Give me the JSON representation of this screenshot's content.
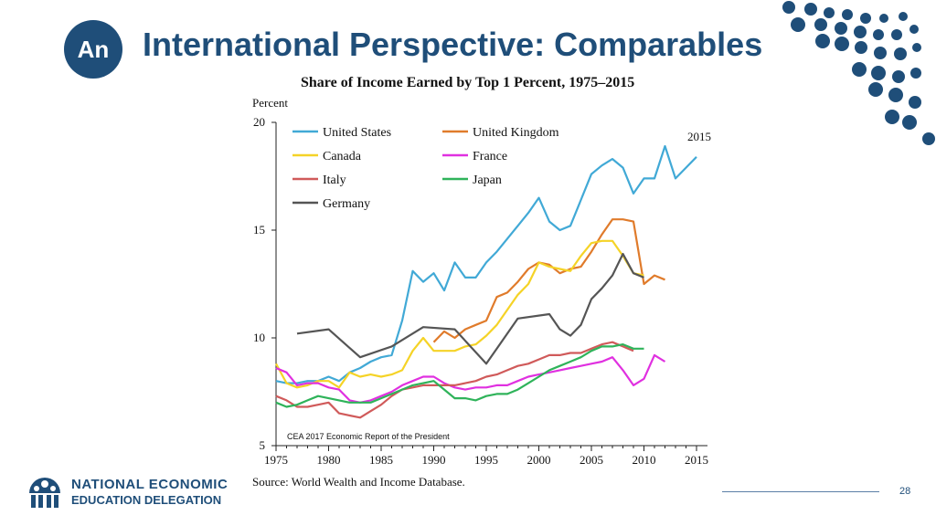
{
  "slide": {
    "badge_text": "An",
    "title": "International Perspective: Comparables",
    "page_number": "28"
  },
  "logo": {
    "line1": "NATIONAL ECONOMIC",
    "line2": "EDUCATION DELEGATION",
    "icon": "people-building-icon"
  },
  "colors": {
    "brand": "#1f4e79",
    "dots": "#1f4e79"
  },
  "chart_data": {
    "type": "line",
    "title": "Share of Income Earned by Top 1 Percent, 1975–2015",
    "ylabel": "Percent",
    "xlabel": "",
    "ylim": [
      5,
      20
    ],
    "xlim": [
      1975,
      2015
    ],
    "yticks": [
      5,
      10,
      15,
      20
    ],
    "xticks": [
      1975,
      1980,
      1985,
      1990,
      1995,
      2000,
      2005,
      2010,
      2015
    ],
    "grid": false,
    "legend_position": "top-left",
    "annotations": {
      "year_label": "2015",
      "credit": "CEA 2017 Economic Report of the President",
      "source": "Source: World Wealth and Income Database."
    },
    "series": [
      {
        "name": "United States",
        "color": "#41a9d6",
        "x": [
          1975,
          1976,
          1977,
          1978,
          1979,
          1980,
          1981,
          1982,
          1983,
          1984,
          1985,
          1986,
          1987,
          1988,
          1989,
          1990,
          1991,
          1992,
          1993,
          1994,
          1995,
          1996,
          1997,
          1998,
          1999,
          2000,
          2001,
          2002,
          2003,
          2004,
          2005,
          2006,
          2007,
          2008,
          2009,
          2010,
          2011,
          2012,
          2013,
          2014,
          2015
        ],
        "y": [
          8.0,
          7.9,
          7.9,
          8.0,
          8.0,
          8.2,
          8.0,
          8.4,
          8.6,
          8.9,
          9.1,
          9.2,
          10.8,
          13.1,
          12.6,
          13.0,
          12.2,
          13.5,
          12.8,
          12.8,
          13.5,
          14.0,
          14.6,
          15.2,
          15.8,
          16.5,
          15.4,
          15.0,
          15.2,
          16.4,
          17.6,
          18.0,
          18.3,
          17.9,
          16.7,
          17.4,
          17.4,
          18.9,
          17.4,
          17.9,
          18.4
        ]
      },
      {
        "name": "United Kingdom",
        "color": "#e07b2b",
        "x": [
          1990,
          1991,
          1992,
          1993,
          1994,
          1995,
          1996,
          1997,
          1998,
          1999,
          2000,
          2001,
          2002,
          2003,
          2004,
          2005,
          2006,
          2007,
          2008,
          2009,
          2010,
          2011,
          2012
        ],
        "y": [
          9.8,
          10.3,
          10.0,
          10.4,
          10.6,
          10.8,
          11.9,
          12.1,
          12.6,
          13.2,
          13.5,
          13.4,
          13.0,
          13.2,
          13.3,
          14.0,
          14.8,
          15.5,
          15.5,
          15.4,
          12.5,
          12.9,
          12.7
        ]
      },
      {
        "name": "Canada",
        "color": "#f5d327",
        "x": [
          1975,
          1976,
          1977,
          1978,
          1979,
          1980,
          1981,
          1982,
          1983,
          1984,
          1985,
          1986,
          1987,
          1988,
          1989,
          1990,
          1991,
          1992,
          1993,
          1994,
          1995,
          1996,
          1997,
          1998,
          1999,
          2000,
          2001,
          2002,
          2003,
          2004,
          2005,
          2006,
          2007,
          2008,
          2009,
          2010
        ],
        "y": [
          8.8,
          7.9,
          7.7,
          7.8,
          8.0,
          8.0,
          7.7,
          8.4,
          8.2,
          8.3,
          8.2,
          8.3,
          8.5,
          9.4,
          10.0,
          9.4,
          9.4,
          9.4,
          9.6,
          9.7,
          10.1,
          10.6,
          11.3,
          12.0,
          12.5,
          13.5,
          13.3,
          13.2,
          13.1,
          13.8,
          14.4,
          14.5,
          14.5,
          13.8,
          13.0,
          12.9
        ]
      },
      {
        "name": "France",
        "color": "#e030e0",
        "x": [
          1975,
          1976,
          1977,
          1978,
          1979,
          1980,
          1981,
          1982,
          1983,
          1984,
          1985,
          1986,
          1987,
          1988,
          1989,
          1990,
          1991,
          1992,
          1993,
          1994,
          1995,
          1996,
          1997,
          1998,
          1999,
          2000,
          2001,
          2002,
          2003,
          2004,
          2005,
          2006,
          2007,
          2008,
          2009,
          2010,
          2011,
          2012
        ],
        "y": [
          8.6,
          8.4,
          7.8,
          7.9,
          7.9,
          7.7,
          7.6,
          7.1,
          7.0,
          7.1,
          7.3,
          7.5,
          7.8,
          8.0,
          8.2,
          8.2,
          7.9,
          7.7,
          7.6,
          7.7,
          7.7,
          7.8,
          7.8,
          8.0,
          8.2,
          8.3,
          8.4,
          8.5,
          8.6,
          8.7,
          8.8,
          8.9,
          9.1,
          8.5,
          7.8,
          8.1,
          9.2,
          8.9
        ]
      },
      {
        "name": "Italy",
        "color": "#d05a5a",
        "x": [
          1975,
          1976,
          1977,
          1978,
          1979,
          1980,
          1981,
          1982,
          1983,
          1984,
          1985,
          1986,
          1987,
          1988,
          1989,
          1990,
          1991,
          1992,
          1993,
          1994,
          1995,
          1996,
          1997,
          1998,
          1999,
          2000,
          2001,
          2002,
          2003,
          2004,
          2005,
          2006,
          2007,
          2008,
          2009
        ],
        "y": [
          7.3,
          7.1,
          6.8,
          6.8,
          6.9,
          7.0,
          6.5,
          6.4,
          6.3,
          6.6,
          6.9,
          7.3,
          7.6,
          7.7,
          7.8,
          7.8,
          7.8,
          7.8,
          7.9,
          8.0,
          8.2,
          8.3,
          8.5,
          8.7,
          8.8,
          9.0,
          9.2,
          9.2,
          9.3,
          9.3,
          9.5,
          9.7,
          9.8,
          9.6,
          9.4
        ]
      },
      {
        "name": "Japan",
        "color": "#2fb35a",
        "x": [
          1975,
          1976,
          1977,
          1978,
          1979,
          1980,
          1981,
          1982,
          1983,
          1984,
          1985,
          1986,
          1987,
          1988,
          1989,
          1990,
          1991,
          1992,
          1993,
          1994,
          1995,
          1996,
          1997,
          1998,
          1999,
          2000,
          2001,
          2002,
          2003,
          2004,
          2005,
          2006,
          2007,
          2008,
          2009,
          2010
        ],
        "y": [
          7.0,
          6.8,
          6.9,
          7.1,
          7.3,
          7.2,
          7.1,
          7.0,
          7.0,
          7.0,
          7.2,
          7.4,
          7.6,
          7.8,
          7.9,
          8.0,
          7.6,
          7.2,
          7.2,
          7.1,
          7.3,
          7.4,
          7.4,
          7.6,
          7.9,
          8.2,
          8.5,
          8.7,
          8.9,
          9.1,
          9.4,
          9.6,
          9.6,
          9.7,
          9.5,
          9.5
        ]
      },
      {
        "name": "Germany",
        "color": "#555555",
        "x": [
          1977,
          1980,
          1983,
          1986,
          1989,
          1992,
          1995,
          1998,
          2001,
          2002,
          2003,
          2004,
          2005,
          2006,
          2007,
          2008,
          2009,
          2010
        ],
        "y": [
          10.2,
          10.4,
          9.1,
          9.6,
          10.5,
          10.4,
          8.8,
          10.9,
          11.1,
          10.4,
          10.1,
          10.6,
          11.8,
          12.3,
          12.9,
          13.9,
          13.0,
          12.8
        ]
      }
    ]
  }
}
